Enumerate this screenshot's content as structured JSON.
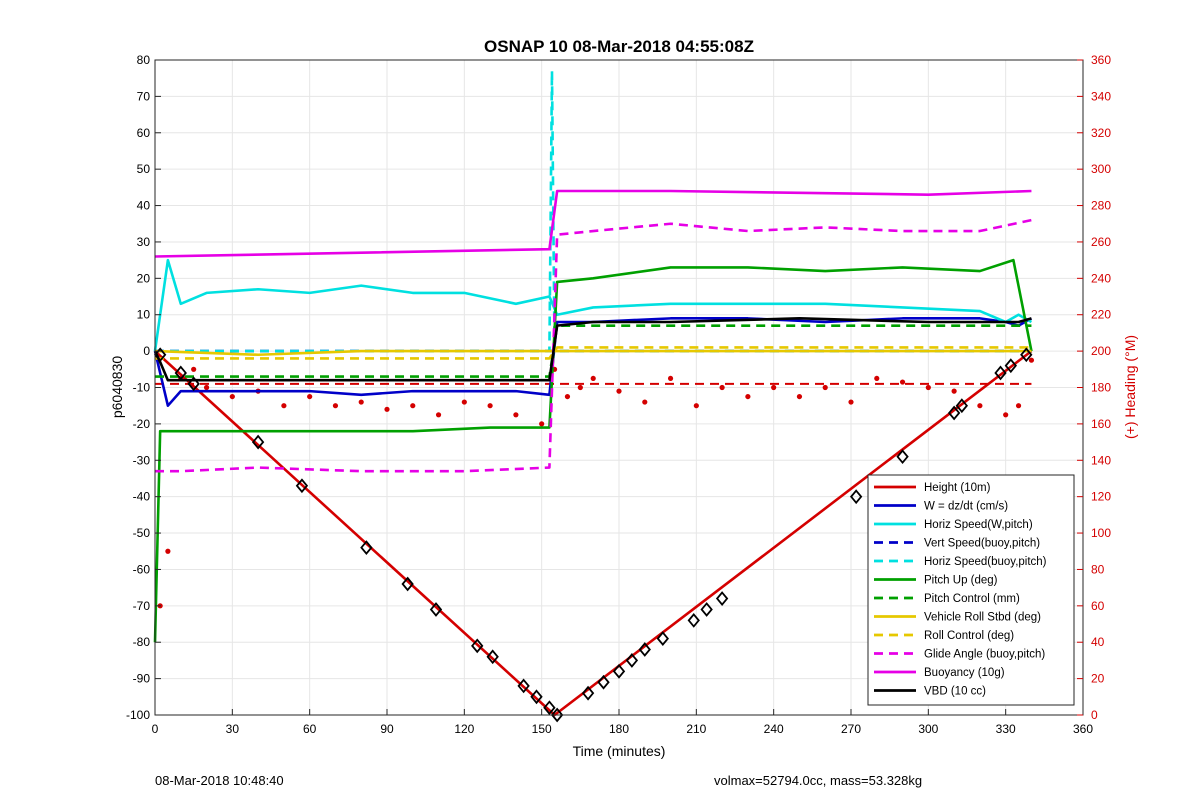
{
  "chart_data": {
    "type": "line",
    "title": "OSNAP 10 08-Mar-2018 04:55:08Z",
    "xlabel": "Time (minutes)",
    "ylabel": "p6040830",
    "ylabel_right": "(+) Heading (°M)",
    "xlim": [
      0,
      360
    ],
    "ylim": [
      -100,
      80
    ],
    "ylim_right": [
      0,
      360
    ],
    "x_ticks": [
      0,
      30,
      60,
      90,
      120,
      150,
      180,
      210,
      240,
      270,
      300,
      330,
      360
    ],
    "y_ticks": [
      -100,
      -90,
      -80,
      -70,
      -60,
      -50,
      -40,
      -30,
      -20,
      -10,
      0,
      10,
      20,
      30,
      40,
      50,
      60,
      70,
      80
    ],
    "y_ticks_right": [
      0,
      20,
      40,
      60,
      80,
      100,
      120,
      140,
      160,
      180,
      200,
      220,
      240,
      260,
      280,
      300,
      320,
      340,
      360
    ],
    "grid": true,
    "legend_position": "bottom-right",
    "series": [
      {
        "name": "Height (10m)",
        "color": "#d40000",
        "style": "solid",
        "x": [
          0,
          155,
          340
        ],
        "y": [
          0,
          -100,
          0
        ]
      },
      {
        "name": "W = dz/dt (cm/s)",
        "color": "#0000c8",
        "style": "solid",
        "x": [
          0,
          5,
          10,
          20,
          40,
          60,
          80,
          100,
          120,
          140,
          153,
          156,
          170,
          200,
          230,
          260,
          290,
          320,
          330,
          335,
          340
        ],
        "y": [
          0,
          -15,
          -11,
          -11,
          -11,
          -11,
          -12,
          -11,
          -11,
          -11,
          -12,
          8,
          8,
          9,
          9,
          8,
          9,
          9,
          8,
          7,
          9
        ]
      },
      {
        "name": "Horiz Speed(W,pitch)",
        "color": "#00e0e0",
        "style": "solid",
        "x": [
          0,
          5,
          10,
          20,
          40,
          60,
          80,
          100,
          120,
          140,
          153,
          156,
          170,
          200,
          230,
          260,
          290,
          320,
          330,
          335,
          340
        ],
        "y": [
          0,
          25,
          13,
          16,
          17,
          16,
          18,
          16,
          16,
          13,
          15,
          10,
          12,
          13,
          13,
          13,
          12,
          11,
          8,
          10,
          8
        ]
      },
      {
        "name": "Vert Speed(buoy,pitch)",
        "color": "#0000c8",
        "style": "dashed",
        "x": [
          0,
          153,
          156,
          340
        ],
        "y": [
          0,
          0,
          0,
          0
        ]
      },
      {
        "name": "Horiz Speed(buoy,pitch)",
        "color": "#00e0e0",
        "style": "dashed",
        "x": [
          0,
          153,
          154,
          155,
          156,
          340
        ],
        "y": [
          0,
          0,
          77,
          0,
          0,
          0
        ]
      },
      {
        "name": "Pitch Up (deg)",
        "color": "#00a000",
        "style": "solid",
        "x": [
          0,
          2,
          10,
          40,
          70,
          100,
          130,
          153,
          156,
          170,
          200,
          230,
          260,
          290,
          320,
          333,
          340
        ],
        "y": [
          -80,
          -22,
          -22,
          -22,
          -22,
          -22,
          -21,
          -21,
          19,
          20,
          23,
          23,
          22,
          23,
          22,
          25,
          0
        ]
      },
      {
        "name": "Pitch Control (mm)",
        "color": "#00a000",
        "style": "dashed",
        "x": [
          0,
          153,
          156,
          340
        ],
        "y": [
          -7,
          -7,
          7,
          7
        ]
      },
      {
        "name": "Vehicle Roll Stbd (deg)",
        "color": "#e6c800",
        "style": "solid",
        "x": [
          0,
          40,
          80,
          120,
          153,
          156,
          200,
          250,
          300,
          340
        ],
        "y": [
          0,
          -1,
          0,
          0,
          0,
          0,
          0,
          0,
          0,
          0
        ]
      },
      {
        "name": "Roll Control (deg)",
        "color": "#e6c800",
        "style": "dashed",
        "x": [
          0,
          153,
          156,
          340
        ],
        "y": [
          -2,
          -2,
          1,
          1
        ]
      },
      {
        "name": "Glide Angle (buoy,pitch)",
        "color": "#e600e6",
        "style": "dashed",
        "x": [
          0,
          10,
          40,
          80,
          120,
          153,
          156,
          170,
          200,
          230,
          260,
          290,
          320,
          340
        ],
        "y": [
          -33,
          -33,
          -32,
          -33,
          -33,
          -32,
          32,
          33,
          35,
          33,
          34,
          33,
          33,
          36
        ]
      },
      {
        "name": "Buoyancy (10g)",
        "color": "#e600e6",
        "style": "solid",
        "x": [
          0,
          153,
          156,
          200,
          300,
          340
        ],
        "y": [
          26,
          28,
          44,
          44,
          43,
          44
        ]
      },
      {
        "name": "VBD (10 cc)",
        "color": "#000000",
        "style": "solid",
        "x": [
          0,
          2,
          5,
          40,
          100,
          153,
          156,
          170,
          200,
          250,
          300,
          335,
          340
        ],
        "y": [
          0,
          -3,
          -8,
          -8,
          -8,
          -8,
          7,
          8,
          8,
          9,
          8,
          8,
          9
        ]
      }
    ],
    "heading_series": {
      "axis": "right",
      "color": "#d40000",
      "style": "dots",
      "x": [
        2,
        5,
        10,
        15,
        20,
        30,
        40,
        50,
        60,
        70,
        80,
        90,
        100,
        110,
        120,
        130,
        140,
        150,
        155,
        160,
        165,
        170,
        180,
        190,
        200,
        210,
        220,
        230,
        240,
        250,
        260,
        270,
        280,
        290,
        300,
        310,
        320,
        330,
        335,
        340
      ],
      "y": [
        60,
        90,
        185,
        190,
        180,
        175,
        178,
        170,
        175,
        170,
        172,
        168,
        170,
        165,
        172,
        170,
        165,
        160,
        190,
        175,
        180,
        185,
        178,
        172,
        185,
        170,
        180,
        175,
        180,
        175,
        180,
        172,
        185,
        183,
        180,
        178,
        170,
        165,
        170,
        195
      ]
    },
    "heading_target": {
      "axis": "right",
      "color": "#d40000",
      "style": "dashed",
      "x": [
        0,
        340
      ],
      "y": [
        182,
        182
      ]
    },
    "markers": {
      "shape": "diamond",
      "color": "#000000",
      "x": [
        2,
        10,
        15,
        40,
        57,
        82,
        98,
        109,
        125,
        131,
        143,
        148,
        153,
        156,
        168,
        174,
        180,
        185,
        190,
        197,
        209,
        214,
        220,
        272,
        290,
        310,
        313,
        328,
        332,
        338
      ],
      "y": [
        -1,
        -6,
        -9,
        -25,
        -37,
        -54,
        -64,
        -71,
        -81,
        -84,
        -92,
        -95,
        -98,
        -100,
        -94,
        -91,
        -88,
        -85,
        -82,
        -79,
        -74,
        -71,
        -68,
        -40,
        -29,
        -17,
        -15,
        -6,
        -4,
        -1
      ]
    }
  },
  "footer": {
    "timestamp": "08-Mar-2018 10:48:40",
    "info": "volmax=52794.0cc, mass=53.328kg"
  }
}
